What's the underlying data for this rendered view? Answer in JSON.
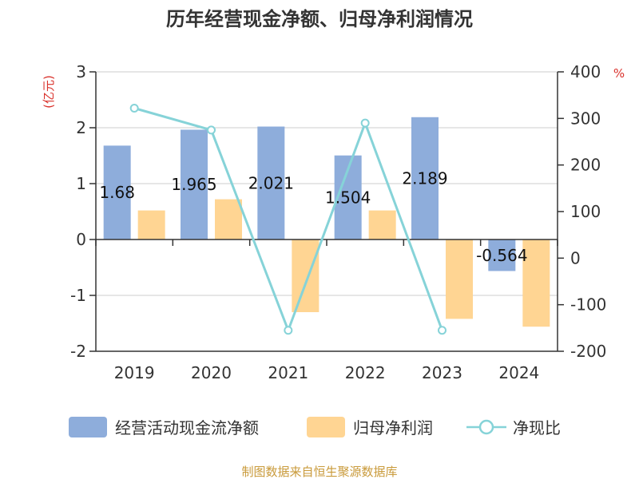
{
  "chart_data": {
    "type": "bar",
    "title": "历年经营现金净额、归母净利润情况",
    "categories": [
      "2019",
      "2020",
      "2021",
      "2022",
      "2023",
      "2024"
    ],
    "left_unit": "(亿元)",
    "right_unit": "%",
    "ylim": [
      -2,
      3
    ],
    "y_ticks": [
      "3",
      "2",
      "1",
      "0",
      "-1",
      "-2"
    ],
    "y2lim": [
      -200,
      400
    ],
    "y2_ticks": [
      "400",
      "300",
      "200",
      "100",
      "0",
      "-100",
      "-200"
    ],
    "grid": true,
    "legend_position": "bottom",
    "series": [
      {
        "name": "经营活动现金流净额",
        "axis": "left",
        "type": "bar",
        "color": "#8EADDB",
        "values": [
          1.68,
          1.965,
          2.021,
          1.504,
          2.189,
          -0.564
        ],
        "labels": [
          "1.68",
          "1.965",
          "2.021",
          "1.504",
          "2.189",
          "-0.564"
        ]
      },
      {
        "name": "归母净利润",
        "axis": "left",
        "type": "bar",
        "color": "#FFD593",
        "values": [
          0.52,
          0.72,
          -1.3,
          0.52,
          -1.42,
          -1.56
        ]
      },
      {
        "name": "净现比",
        "axis": "right",
        "type": "line",
        "color": "#86D3D8",
        "values": [
          322,
          275,
          -155,
          290,
          -155,
          null
        ]
      }
    ],
    "source": "制图数据来自恒生聚源数据库",
    "colors": {
      "unit": "#D9312B",
      "source": "#C99A3A"
    }
  }
}
